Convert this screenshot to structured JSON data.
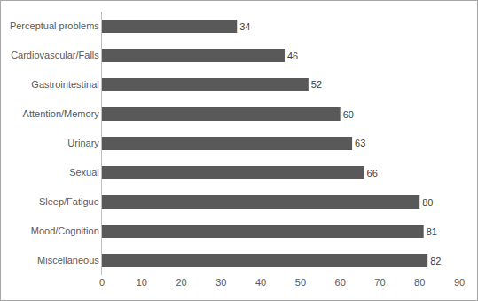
{
  "chart_data": {
    "type": "bar",
    "orientation": "horizontal",
    "categories": [
      "Perceptual problems",
      "Cardiovascular/Falls",
      "Gastrointestinal",
      "Attention/Memory",
      "Urinary",
      "Sexual",
      "Sleep/Fatigue",
      "Mood/Cognition",
      "Miscellaneous"
    ],
    "values": [
      34,
      46,
      52,
      60,
      63,
      66,
      80,
      81,
      82
    ],
    "color": "#595959",
    "xlim": [
      0,
      90
    ],
    "xticks": [
      0,
      10,
      20,
      30,
      40,
      50,
      60,
      70,
      80,
      90
    ],
    "grid": false,
    "data_labels": true
  }
}
